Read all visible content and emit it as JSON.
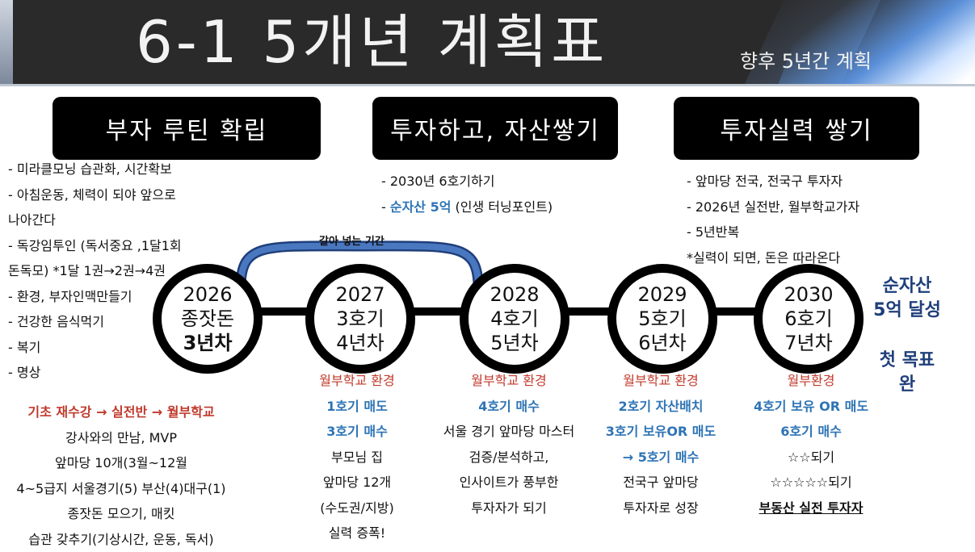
{
  "header": {
    "title": "6-1 5개년 계획표",
    "subtitle": "향후 5년간 계획"
  },
  "phases": [
    {
      "label": "부자 루틴 확립"
    },
    {
      "label": "투자하고, 자산쌓기"
    },
    {
      "label": "투자실력 쌓기"
    }
  ],
  "col1": {
    "lines": [
      "- 미라클모닝 습관화, 시간확보",
      "- 아침운동, 체력이 되야 앞으로",
      "나아간다",
      "- 독강임투인 (독서중요 ,1달1회",
      "돈독모) *1달 1권→2권→4권",
      "- 환경, 부자인맥만들기",
      "- 건강한 음식먹기",
      "- 복기",
      "- 명상"
    ]
  },
  "col2": {
    "line1": "- 2030년 6호기하기",
    "line2_prefix": "- ",
    "line2_highlight": "순자산 5억",
    "line2_suffix": " (인생 터닝포인트)"
  },
  "col3": {
    "lines": [
      "- 앞마당 전국, 전국구 투자자",
      "- 2026년 실전반, 월부학교가자",
      "- 5년반복",
      " *실력이 되면, 돈은 따라온다"
    ]
  },
  "bottom1": {
    "title": "기초 재수강 → 실전반  → 월부학교",
    "lines": [
      "강사와의 만남, MVP",
      "앞마당 10개(3월~12월",
      "4~5급지 서울경기(5) 부산(4)대구(1)",
      "종잣돈 모으기, 매킷",
      "습관 갖추기(기상시간, 운동, 독서)"
    ]
  },
  "timeline": {
    "arc_label": "갈아 넣는 기간",
    "nodes": [
      {
        "year": "2026",
        "l2": "종잣돈",
        "l3": "3년차"
      },
      {
        "year": "2027",
        "l2": "3호기",
        "l3": "4년차"
      },
      {
        "year": "2028",
        "l2": "4호기",
        "l3": "5년차"
      },
      {
        "year": "2029",
        "l2": "5호기",
        "l3": "6년차"
      },
      {
        "year": "2030",
        "l2": "6호기",
        "l3": "7년차"
      }
    ]
  },
  "sub1": {
    "head": "월부학교 환경",
    "b1": "1호기 매도",
    "b2": "3호기 매수",
    "lines": [
      "부모님 집",
      "앞마당 12개",
      "(수도권/지방)",
      "실력 증폭!"
    ]
  },
  "sub2": {
    "head": "월부학교 환경",
    "b1": "4호기 매수",
    "lines": [
      "서울 경기 앞마당 마스터",
      "검증/분석하고,",
      "인사이트가 풍부한",
      "투자자가 되기"
    ]
  },
  "sub3": {
    "head": "월부학교 환경",
    "b1": "2호기 자산배치",
    "b2": "3호기 보유OR 매도",
    "b3": "→ 5호기 매수",
    "lines": [
      "전국구 앞마당",
      "투자자로 성장"
    ]
  },
  "sub4": {
    "head": "월부환경",
    "b1": "4호기 보유 OR 매도",
    "b2": "6호기 매수",
    "l1": "☆☆되기",
    "l2": "☆☆☆☆☆되기",
    "l3": "부동산 실전 투자자"
  },
  "goal": {
    "l1": "순자산",
    "l2": "5억 달성",
    "l3": "첫 목표",
    "l4": "완"
  },
  "colors": {
    "header_bg": "#2a2a2a",
    "accent_blue": "#2e74b5",
    "accent_red": "#c0392b",
    "goal_navy": "#1f3f7a"
  }
}
